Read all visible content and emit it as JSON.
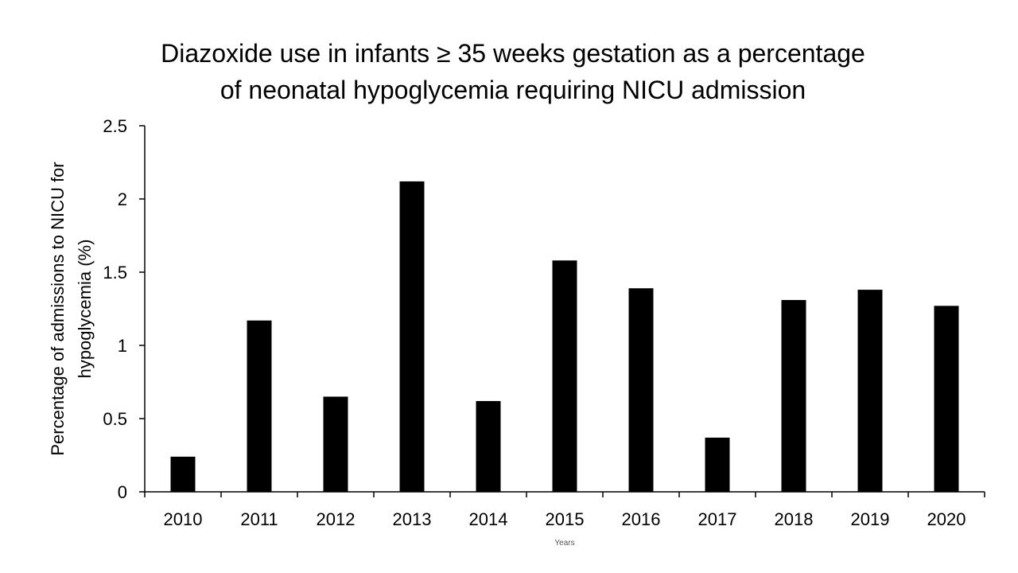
{
  "chart_data": {
    "type": "bar",
    "title_line1": "Diazoxide use in infants ≥ 35 weeks gestation as a percentage",
    "title_line2": "of neonatal hypoglycemia requiring NICU admission",
    "xlabel": "Years",
    "ylabel_line1": "Percentage of admissions to NICU for",
    "ylabel_line2": "hypoglycemia (%)",
    "categories": [
      "2010",
      "2011",
      "2012",
      "2013",
      "2014",
      "2015",
      "2016",
      "2017",
      "2018",
      "2019",
      "2020"
    ],
    "values": [
      0.24,
      1.17,
      0.65,
      2.12,
      0.62,
      1.58,
      1.39,
      0.37,
      1.31,
      1.38,
      1.27
    ],
    "ylim": [
      0,
      2.5
    ],
    "yticks": [
      "0",
      "0.5",
      "1",
      "1.5",
      "2",
      "2.5"
    ],
    "bar_color": "#000000",
    "grid": false,
    "legend": "none"
  }
}
